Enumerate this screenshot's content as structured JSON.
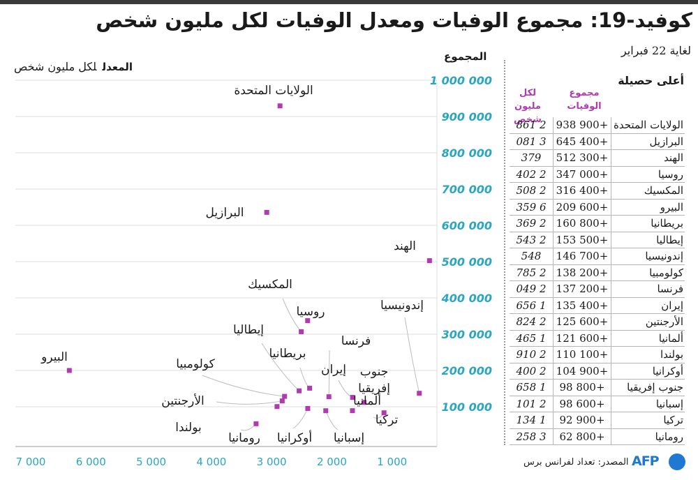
{
  "title": "كوفيد-19: مجموع الوفيات ومعدل الوفيات لكل مليون شخص",
  "subtitle": "لغاية 22 فبراير",
  "plot_header": {
    "rate_label": "المعدل",
    "rate_unit": "لكل مليون شخص"
  },
  "total_axis_title": "المجموع",
  "table": {
    "header": "أعلى حصيلة",
    "col_total": "مجموع الوفيات",
    "col_rate": "لكل مليون شخص",
    "rows": [
      {
        "country": "الولايات المتحدة",
        "total": "+900 938",
        "rate": "2 861"
      },
      {
        "country": "البرازيل",
        "total": "+400 645",
        "rate": "3 081"
      },
      {
        "country": "الهند",
        "total": "+300 512",
        "rate": "379"
      },
      {
        "country": "روسيا",
        "total": "+000 347",
        "rate": "2 402"
      },
      {
        "country": "المكسيك",
        "total": "+400 316",
        "rate": "2 508"
      },
      {
        "country": "البيرو",
        "total": "+600 209",
        "rate": "6 359"
      },
      {
        "country": "بريطانيا",
        "total": "+800 160",
        "rate": "2 369"
      },
      {
        "country": "إيطاليا",
        "total": "+500 153",
        "rate": "2 543"
      },
      {
        "country": "إندونيسيا",
        "total": "+700 146",
        "rate": "548"
      },
      {
        "country": "كولومبيا",
        "total": "+200 138",
        "rate": "2 785"
      },
      {
        "country": "فرنسا",
        "total": "+200 137",
        "rate": "2 049"
      },
      {
        "country": "إيران",
        "total": "+400 135",
        "rate": "1 656"
      },
      {
        "country": "الأرجنتين",
        "total": "+600 125",
        "rate": "2 824"
      },
      {
        "country": "ألمانيا",
        "total": "+600 121",
        "rate": "1 465"
      },
      {
        "country": "بولندا",
        "total": "+100 110",
        "rate": "2 910"
      },
      {
        "country": "أوكرانيا",
        "total": "+900 104",
        "rate": "2 400"
      },
      {
        "country": "جنوب إفريقيا",
        "total": "+800 98",
        "rate": "1 658"
      },
      {
        "country": "إسبانيا",
        "total": "+600 98",
        "rate": "2 101"
      },
      {
        "country": "تركيا",
        "total": "+900 92",
        "rate": "1 134"
      },
      {
        "country": "رومانيا",
        "total": "+800 62",
        "rate": "3 258"
      }
    ]
  },
  "chart_data": {
    "type": "scatter",
    "x_axis": {
      "reversed": true,
      "xlim": [
        0,
        7000
      ],
      "ticks": [
        1000,
        2000,
        3000,
        4000,
        5000,
        6000,
        7000
      ],
      "tick_labels": [
        "1 000",
        "2 000",
        "3 000",
        "4 000",
        "5 000",
        "6 000",
        "7 000"
      ]
    },
    "y_axis": {
      "ylim": [
        0,
        1000000
      ],
      "ticks": [
        100000,
        200000,
        300000,
        400000,
        500000,
        600000,
        700000,
        800000,
        900000,
        1000000
      ],
      "tick_labels": [
        "100 000",
        "200 000",
        "300 000",
        "400 000",
        "500 000",
        "600 000",
        "700 000",
        "800 000",
        "900 000",
        "1 000 000"
      ]
    },
    "grid": true,
    "point_color": "#b23ab0",
    "points": [
      {
        "label": "الولايات المتحدة",
        "x": 2861,
        "y": 938900
      },
      {
        "label": "البرازيل",
        "x": 3081,
        "y": 645400
      },
      {
        "label": "الهند",
        "x": 379,
        "y": 512300
      },
      {
        "label": "روسيا",
        "x": 2402,
        "y": 347000
      },
      {
        "label": "المكسيك",
        "x": 2508,
        "y": 316400
      },
      {
        "label": "البيرو",
        "x": 6359,
        "y": 209600
      },
      {
        "label": "بريطانيا",
        "x": 2369,
        "y": 160800
      },
      {
        "label": "إيطاليا",
        "x": 2543,
        "y": 153500
      },
      {
        "label": "إندونيسيا",
        "x": 548,
        "y": 146700
      },
      {
        "label": "كولومبيا",
        "x": 2785,
        "y": 138200
      },
      {
        "label": "فرنسا",
        "x": 2049,
        "y": 137200
      },
      {
        "label": "إيران",
        "x": 1656,
        "y": 135400
      },
      {
        "label": "الأرجنتين",
        "x": 2824,
        "y": 125600
      },
      {
        "label": "ألمانيا",
        "x": 1465,
        "y": 121600
      },
      {
        "label": "بولندا",
        "x": 2910,
        "y": 110100
      },
      {
        "label": "أوكرانيا",
        "x": 2400,
        "y": 104900
      },
      {
        "label": "جنوب إفريقيا",
        "x": 1658,
        "y": 98800
      },
      {
        "label": "إسبانيا",
        "x": 2101,
        "y": 98600
      },
      {
        "label": "تركيا",
        "x": 1134,
        "y": 92900
      },
      {
        "label": "رومانيا",
        "x": 3258,
        "y": 62800
      }
    ]
  },
  "footer": {
    "source": "المصدر: تعداد لفرانس برس",
    "logo": "AFP"
  }
}
